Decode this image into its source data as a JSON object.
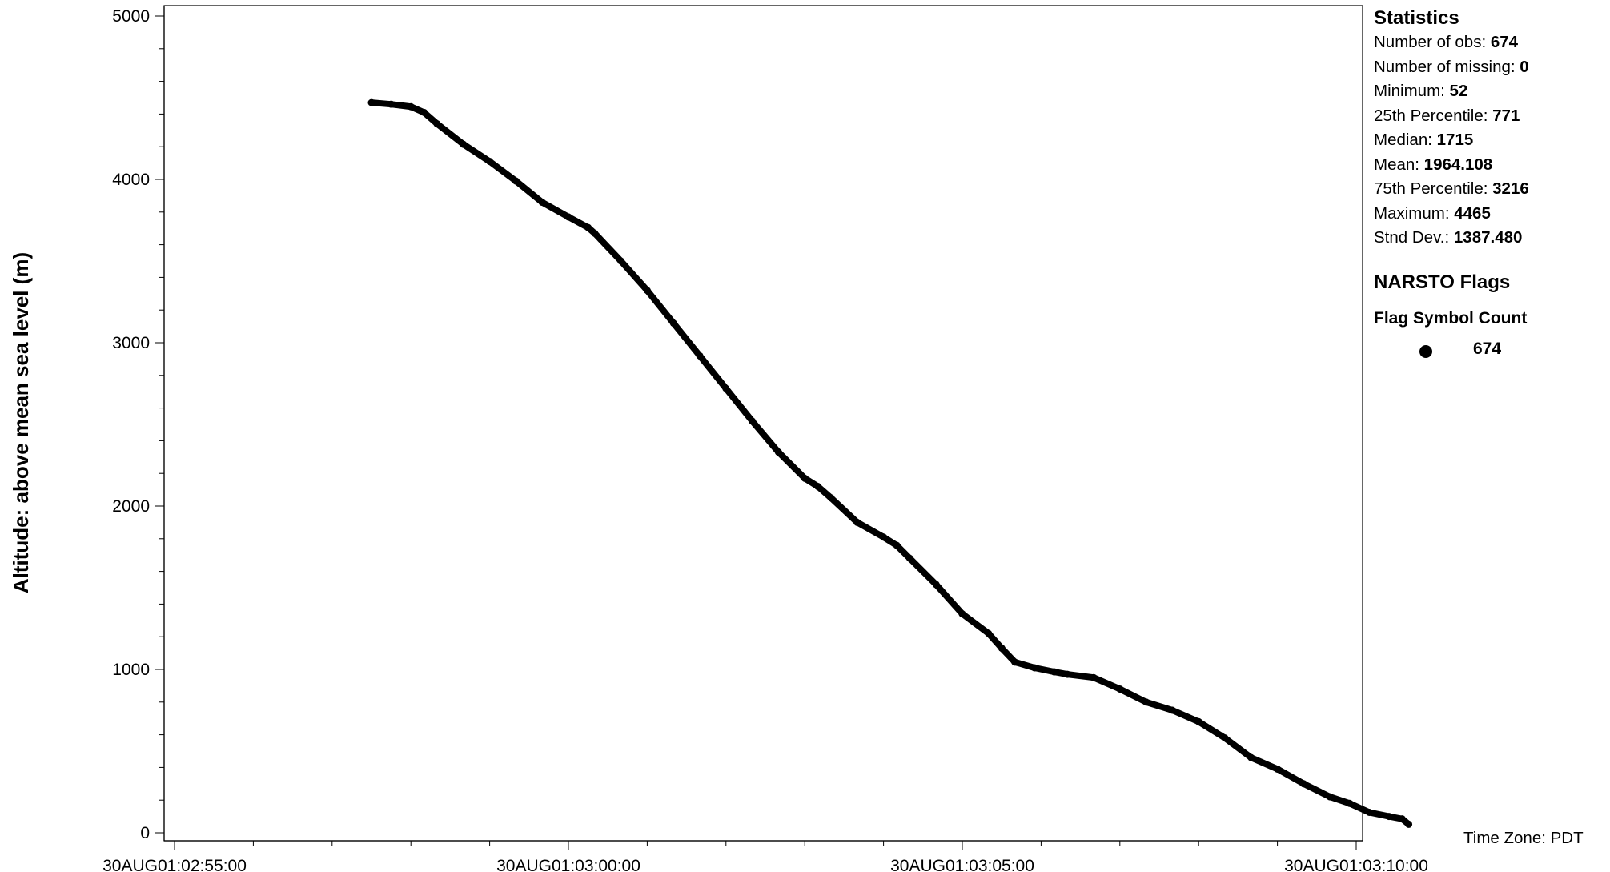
{
  "chart_data": {
    "type": "line",
    "ylabel": "Altitude: above mean sea level (m)",
    "ylim": [
      0,
      5000
    ],
    "yticks": [
      0,
      1000,
      2000,
      3000,
      4000,
      5000
    ],
    "xlim": [
      "30AUG01:02:55:00",
      "30AUG01:03:10:00"
    ],
    "xticks": [
      "30AUG01:02:55:00",
      "30AUG01:03:00:00",
      "30AUG01:03:05:00",
      "30AUG01:03:10:00"
    ],
    "grid": false,
    "series": [
      {
        "marker": "filled-circle",
        "color": "#000000",
        "points": [
          [
            "30AUG01:02:57:30",
            4470
          ],
          [
            "30AUG01:02:57:45",
            4460
          ],
          [
            "30AUG01:02:58:00",
            4445
          ],
          [
            "30AUG01:02:58:10",
            4410
          ],
          [
            "30AUG01:02:58:20",
            4340
          ],
          [
            "30AUG01:02:58:40",
            4215
          ],
          [
            "30AUG01:02:59:00",
            4110
          ],
          [
            "30AUG01:02:59:20",
            3990
          ],
          [
            "30AUG01:02:59:40",
            3860
          ],
          [
            "30AUG01:03:00:00",
            3770
          ],
          [
            "30AUG01:03:00:15",
            3705
          ],
          [
            "30AUG01:03:00:20",
            3670
          ],
          [
            "30AUG01:03:00:40",
            3500
          ],
          [
            "30AUG01:03:01:00",
            3320
          ],
          [
            "30AUG01:03:01:20",
            3120
          ],
          [
            "30AUG01:03:01:40",
            2920
          ],
          [
            "30AUG01:03:02:00",
            2720
          ],
          [
            "30AUG01:03:02:20",
            2520
          ],
          [
            "30AUG01:03:02:40",
            2330
          ],
          [
            "30AUG01:03:03:00",
            2170
          ],
          [
            "30AUG01:03:03:10",
            2120
          ],
          [
            "30AUG01:03:03:20",
            2050
          ],
          [
            "30AUG01:03:03:40",
            1900
          ],
          [
            "30AUG01:03:04:00",
            1810
          ],
          [
            "30AUG01:03:04:10",
            1760
          ],
          [
            "30AUG01:03:04:20",
            1680
          ],
          [
            "30AUG01:03:04:40",
            1520
          ],
          [
            "30AUG01:03:05:00",
            1340
          ],
          [
            "30AUG01:03:05:20",
            1220
          ],
          [
            "30AUG01:03:05:30",
            1130
          ],
          [
            "30AUG01:03:05:40",
            1045
          ],
          [
            "30AUG01:03:05:55",
            1010
          ],
          [
            "30AUG01:03:06:10",
            985
          ],
          [
            "30AUG01:03:06:20",
            970
          ],
          [
            "30AUG01:03:06:40",
            950
          ],
          [
            "30AUG01:03:07:00",
            880
          ],
          [
            "30AUG01:03:07:20",
            800
          ],
          [
            "30AUG01:03:07:40",
            750
          ],
          [
            "30AUG01:03:08:00",
            680
          ],
          [
            "30AUG01:03:08:20",
            580
          ],
          [
            "30AUG01:03:08:40",
            460
          ],
          [
            "30AUG01:03:09:00",
            390
          ],
          [
            "30AUG01:03:09:20",
            300
          ],
          [
            "30AUG01:03:09:40",
            220
          ],
          [
            "30AUG01:03:09:55",
            180
          ],
          [
            "30AUG01:03:10:10",
            125
          ],
          [
            "30AUG01:03:10:25",
            100
          ],
          [
            "30AUG01:03:10:35",
            85
          ],
          [
            "30AUG01:03:10:40",
            52
          ]
        ]
      }
    ]
  },
  "statistics": {
    "heading": "Statistics",
    "rows": [
      {
        "label": "Number of obs: ",
        "value": "674"
      },
      {
        "label": "Number of missing: ",
        "value": "0"
      },
      {
        "label": "Minimum: ",
        "value": "52"
      },
      {
        "label": "25th Percentile: ",
        "value": "771"
      },
      {
        "label": "Median: ",
        "value": "1715"
      },
      {
        "label": "Mean: ",
        "value": "1964.108"
      },
      {
        "label": "75th Percentile: ",
        "value": "3216"
      },
      {
        "label": "Maximum: ",
        "value": "4465"
      },
      {
        "label": "Stnd Dev.: ",
        "value": "1387.480"
      }
    ]
  },
  "flags": {
    "heading": "NARSTO Flags",
    "subheading": "Flag Symbol Count",
    "items": [
      {
        "symbol": "filled-circle",
        "count": "674"
      }
    ]
  },
  "timezone": "Time Zone: PDT"
}
